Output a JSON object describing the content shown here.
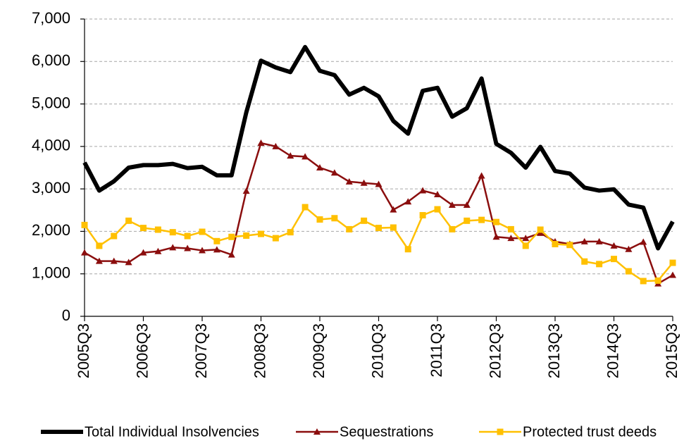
{
  "chart_data": {
    "type": "line",
    "categories": [
      "2005Q3",
      null,
      null,
      null,
      "2006Q3",
      null,
      null,
      null,
      "2007Q3",
      null,
      null,
      null,
      "2008Q3",
      null,
      null,
      null,
      "2009Q3",
      null,
      null,
      null,
      "2010Q3",
      null,
      null,
      null,
      "2011Q3",
      null,
      null,
      null,
      "2012Q3",
      null,
      null,
      null,
      "2013Q3",
      null,
      null,
      null,
      "2014Q3",
      null,
      null,
      null,
      "2015Q3"
    ],
    "series": [
      {
        "name": "Total Individual Insolvencies",
        "color": "#000000",
        "width": 6,
        "marker": "none",
        "values": [
          3620,
          2960,
          3180,
          3500,
          3560,
          3560,
          3590,
          3490,
          3520,
          3320,
          3320,
          4800,
          6020,
          5860,
          5750,
          6340,
          5780,
          5680,
          5220,
          5380,
          5180,
          4600,
          4300,
          5310,
          5380,
          4700,
          4900,
          5600,
          4060,
          3850,
          3500,
          3990,
          3420,
          3360,
          3030,
          2960,
          2990,
          2630,
          2560,
          1600,
          2230
        ]
      },
      {
        "name": "Sequestrations",
        "color": "#8b0e0e",
        "width": 2.5,
        "marker": "triangle",
        "values": [
          1500,
          1300,
          1300,
          1270,
          1500,
          1530,
          1620,
          1600,
          1550,
          1570,
          1450,
          2950,
          4080,
          4000,
          3780,
          3760,
          3500,
          3380,
          3170,
          3140,
          3110,
          2510,
          2700,
          2960,
          2870,
          2620,
          2620,
          3310,
          1870,
          1840,
          1840,
          1960,
          1760,
          1700,
          1760,
          1760,
          1660,
          1580,
          1750,
          770,
          970
        ]
      },
      {
        "name": "Protected trust deeds",
        "color": "#ffc000",
        "width": 2.5,
        "marker": "square",
        "values": [
          2150,
          1660,
          1890,
          2250,
          2080,
          2040,
          1980,
          1890,
          1990,
          1770,
          1870,
          1900,
          1940,
          1840,
          1980,
          2570,
          2280,
          2310,
          2050,
          2250,
          2080,
          2090,
          1580,
          2380,
          2520,
          2050,
          2250,
          2270,
          2220,
          2050,
          1660,
          2040,
          1700,
          1680,
          1290,
          1230,
          1350,
          1060,
          830,
          840,
          1260
        ]
      }
    ],
    "ylim": [
      0,
      7000
    ],
    "yticks": [
      0,
      {
        "value": 1000,
        "label": "1,000"
      },
      {
        "value": 2000,
        "label": "2,000"
      },
      {
        "value": 3000,
        "label": "3,000"
      },
      {
        "value": 4000,
        "label": "4,000"
      },
      {
        "value": 5000,
        "label": "5,000"
      },
      {
        "value": 6000,
        "label": "6,000"
      },
      {
        "value": 7000,
        "label": "7,000"
      }
    ],
    "grid": true,
    "legend": "bottom"
  }
}
